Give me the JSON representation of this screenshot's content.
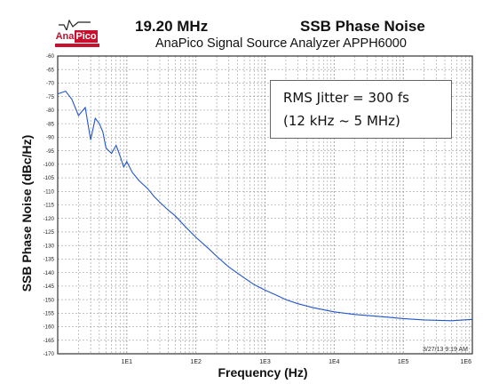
{
  "header": {
    "logo_ana": "Ana",
    "logo_pico": "Pico",
    "frequency": "19.20 MHz",
    "plot_title": "SSB Phase Noise",
    "subtitle": "AnaPico Signal Source Analyzer APPH6000"
  },
  "annotation": {
    "line1": "RMS Jitter = 300 fs",
    "line2": "(12 kHz ~ 5 MHz)"
  },
  "timestamp": "3/27/13 9:19 AM",
  "colors": {
    "trace": "#2255cc",
    "grid": "#9a9a9a",
    "logo": "#c8102e"
  },
  "chart_data": {
    "type": "line",
    "title": "SSB Phase Noise",
    "xlabel": "Frequency (Hz)",
    "ylabel": "SSB Phase Noise (dBc/Hz)",
    "xscale": "log",
    "xlim": [
      1,
      1000000
    ],
    "ylim": [
      -170,
      -60
    ],
    "grid": true,
    "xticks": [
      10,
      100,
      1000,
      10000,
      100000,
      1000000
    ],
    "xtick_labels": [
      "1E1",
      "1E2",
      "1E3",
      "1E4",
      "1E5",
      "1E6"
    ],
    "yticks": [
      -60,
      -65,
      -70,
      -75,
      -80,
      -85,
      -90,
      -95,
      -100,
      -105,
      -110,
      -115,
      -120,
      -125,
      -130,
      -135,
      -140,
      -145,
      -150,
      -155,
      -160,
      -165,
      -170
    ],
    "series": [
      {
        "x": [
          1,
          1.3,
          1.6,
          2,
          2.5,
          3,
          3.5,
          4,
          4.5,
          5,
          6,
          7,
          8,
          9,
          10,
          12,
          15,
          20,
          25,
          30,
          40,
          50,
          70,
          100,
          150,
          200,
          300,
          500,
          700,
          1000,
          1500,
          2000,
          3000,
          5000,
          10000,
          20000,
          50000,
          100000,
          200000,
          500000,
          1000000
        ],
        "y": [
          -74,
          -73,
          -76,
          -82,
          -79,
          -91,
          -83,
          -85,
          -88,
          -94,
          -96,
          -93,
          -97,
          -101,
          -99,
          -103,
          -106,
          -109,
          -112,
          -114,
          -117,
          -119,
          -123,
          -127,
          -131,
          -134,
          -138,
          -142,
          -144.5,
          -146.5,
          -148.5,
          -150,
          -151.5,
          -153,
          -154.5,
          -155.5,
          -156.3,
          -157,
          -157.5,
          -157.8,
          -157.3
        ]
      }
    ]
  }
}
